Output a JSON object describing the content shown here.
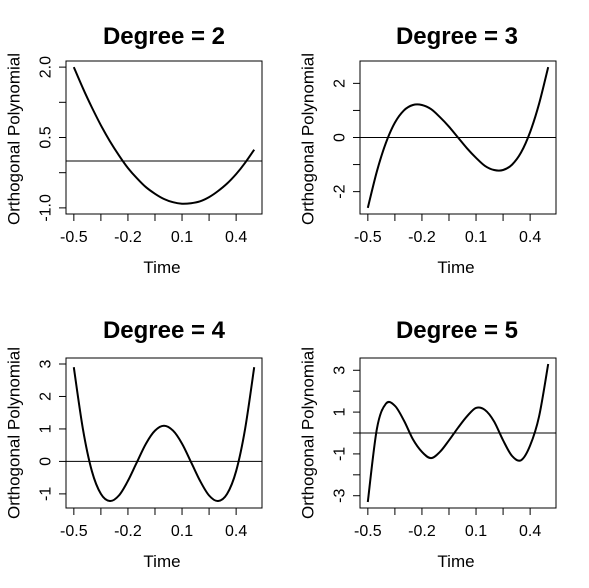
{
  "chart_data": [
    {
      "type": "line",
      "title": "Degree = 2",
      "xlabel": "Time",
      "ylabel": "Orthogonal Polynomial",
      "xticks": [
        -0.5,
        -0.35,
        -0.2,
        -0.05,
        0.1,
        0.25,
        0.4
      ],
      "xtick_labels": [
        "-0.5",
        "",
        "-0.2",
        "",
        "0.1",
        "",
        "0.4"
      ],
      "yticks": [
        -1.0,
        -0.25,
        0.5,
        1.25,
        2.0
      ],
      "ytick_labels": [
        "-1.0",
        "",
        "0.5",
        "",
        "2.0"
      ],
      "xlim": [
        -0.5,
        0.5
      ],
      "ylim": [
        -1.0,
        2.0
      ],
      "reference_line": 0,
      "series": [
        {
          "x": [
            -0.5,
            -0.45,
            -0.4,
            -0.35,
            -0.3,
            -0.25,
            -0.2,
            -0.15,
            -0.1,
            -0.05,
            0.0,
            0.05,
            0.1,
            0.15,
            0.2,
            0.25,
            0.3,
            0.35,
            0.4,
            0.45,
            0.5
          ],
          "values": [
            2.0,
            1.55,
            1.14,
            0.76,
            0.42,
            0.12,
            -0.15,
            -0.37,
            -0.56,
            -0.7,
            -0.81,
            -0.88,
            -0.91,
            -0.9,
            -0.86,
            -0.77,
            -0.64,
            -0.48,
            -0.28,
            -0.04,
            0.24
          ]
        }
      ]
    },
    {
      "type": "line",
      "title": "Degree = 3",
      "xlabel": "Time",
      "ylabel": "Orthogonal Polynomial",
      "xticks": [
        -0.5,
        -0.35,
        -0.2,
        -0.05,
        0.1,
        0.25,
        0.4
      ],
      "xtick_labels": [
        "-0.5",
        "",
        "-0.2",
        "",
        "0.1",
        "",
        "0.4"
      ],
      "yticks": [
        -2,
        -1,
        0,
        1,
        2
      ],
      "ytick_labels": [
        "-2",
        "",
        "0",
        "",
        "2"
      ],
      "xlim": [
        -0.5,
        0.5
      ],
      "ylim": [
        -2.6,
        2.6
      ],
      "reference_line": 0,
      "series": [
        {
          "x": [
            -0.5,
            -0.45,
            -0.4,
            -0.35,
            -0.3,
            -0.25,
            -0.2,
            -0.15,
            -0.1,
            -0.05,
            0.0,
            0.05,
            0.1,
            0.15,
            0.2,
            0.25,
            0.3,
            0.35,
            0.4,
            0.45,
            0.5
          ],
          "values": [
            -2.6,
            -1.25,
            -0.2,
            0.55,
            1.0,
            1.2,
            1.2,
            1.05,
            0.75,
            0.4,
            0.0,
            -0.4,
            -0.75,
            -1.05,
            -1.2,
            -1.2,
            -1.0,
            -0.55,
            0.2,
            1.25,
            2.6
          ]
        }
      ]
    },
    {
      "type": "line",
      "title": "Degree = 4",
      "xlabel": "Time",
      "ylabel": "Orthogonal Polynomial",
      "xticks": [
        -0.5,
        -0.35,
        -0.2,
        -0.05,
        0.1,
        0.25,
        0.4
      ],
      "xtick_labels": [
        "-0.5",
        "",
        "-0.2",
        "",
        "0.1",
        "",
        "0.4"
      ],
      "yticks": [
        -1,
        0,
        1,
        2,
        3
      ],
      "ytick_labels": [
        "-1",
        "0",
        "1",
        "2",
        "3"
      ],
      "xlim": [
        -0.5,
        0.5
      ],
      "ylim": [
        -1.25,
        3.0
      ],
      "reference_line": 0,
      "series": [
        {
          "x": [
            -0.5,
            -0.45,
            -0.4,
            -0.35,
            -0.3,
            -0.25,
            -0.2,
            -0.15,
            -0.1,
            -0.05,
            0.0,
            0.05,
            0.1,
            0.15,
            0.2,
            0.25,
            0.3,
            0.35,
            0.4,
            0.45,
            0.5
          ],
          "values": [
            2.9,
            1.0,
            -0.3,
            -1.0,
            -1.22,
            -1.05,
            -0.6,
            -0.02,
            0.55,
            0.95,
            1.1,
            0.95,
            0.55,
            -0.02,
            -0.6,
            -1.05,
            -1.22,
            -1.0,
            -0.3,
            1.0,
            2.9
          ]
        }
      ]
    },
    {
      "type": "line",
      "title": "Degree = 5",
      "xlabel": "Time",
      "ylabel": "Orthogonal Polynomial",
      "xticks": [
        -0.5,
        -0.35,
        -0.2,
        -0.05,
        0.1,
        0.25,
        0.4
      ],
      "xtick_labels": [
        "-0.5",
        "",
        "-0.2",
        "",
        "0.1",
        "",
        "0.4"
      ],
      "yticks": [
        -3,
        -2,
        -1,
        0,
        1,
        2,
        3
      ],
      "ytick_labels": [
        "-3",
        "",
        "-1",
        "",
        "1",
        "",
        "3"
      ],
      "xlim": [
        -0.5,
        0.5
      ],
      "ylim": [
        -3.3,
        3.3
      ],
      "reference_line": 0,
      "series": [
        {
          "x": [
            -0.5,
            -0.45,
            -0.4,
            -0.35,
            -0.3,
            -0.25,
            -0.2,
            -0.15,
            -0.1,
            -0.05,
            0.0,
            0.05,
            0.1,
            0.15,
            0.2,
            0.25,
            0.3,
            0.35,
            0.4,
            0.45,
            0.5
          ],
          "values": [
            -3.3,
            0.2,
            1.4,
            1.3,
            0.6,
            -0.3,
            -0.9,
            -1.2,
            -0.9,
            -0.35,
            0.25,
            0.8,
            1.2,
            1.1,
            0.55,
            -0.35,
            -1.1,
            -1.3,
            -0.6,
            0.8,
            3.3
          ]
        }
      ]
    }
  ]
}
